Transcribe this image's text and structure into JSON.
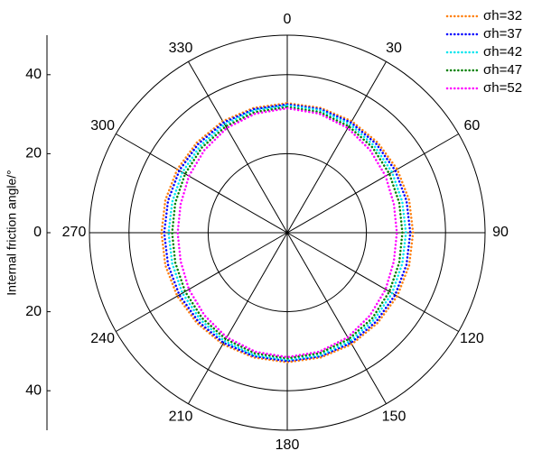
{
  "chart_data": {
    "type": "polar",
    "ylabel": "Internal friction angle/°",
    "theta": [
      0,
      15,
      30,
      45,
      60,
      75,
      90,
      105,
      120,
      135,
      150,
      165,
      180,
      195,
      210,
      225,
      240,
      255,
      270,
      285,
      300,
      315,
      330,
      345
    ],
    "thetaticks": [
      0,
      30,
      60,
      90,
      120,
      150,
      180,
      210,
      240,
      270,
      300,
      330
    ],
    "rlim": [
      0,
      50
    ],
    "rticks": [
      20,
      40
    ],
    "ylim": [
      -50,
      50
    ],
    "yticks": [
      {
        "value": 40,
        "label": "40"
      },
      {
        "value": 20,
        "label": "20"
      },
      0,
      {
        "value": -20,
        "label": "20"
      },
      {
        "value": -40,
        "label": "40"
      }
    ],
    "legend": "upper right",
    "series": [
      {
        "name": "σh=32",
        "color": "#ff7f0e",
        "values": [
          32.8,
          32.7,
          32.6,
          32.3,
          32.1,
          31.9,
          31.8,
          31.9,
          32.1,
          32.3,
          32.6,
          32.7,
          32.8,
          32.7,
          32.6,
          32.3,
          32.1,
          31.9,
          31.8,
          31.9,
          32.1,
          32.3,
          32.6,
          32.7
        ]
      },
      {
        "name": "σh=37",
        "color": "#0000ff",
        "values": [
          32.5,
          32.4,
          32.2,
          31.8,
          31.5,
          31.2,
          31.1,
          31.2,
          31.5,
          31.8,
          32.2,
          32.4,
          32.5,
          32.4,
          32.2,
          31.8,
          31.5,
          31.2,
          31.1,
          31.2,
          31.5,
          31.8,
          32.2,
          32.4
        ]
      },
      {
        "name": "σh=42",
        "color": "#00e5ee",
        "values": [
          32.2,
          32.1,
          31.7,
          31.1,
          30.6,
          30.1,
          30.0,
          30.1,
          30.6,
          31.1,
          31.7,
          32.1,
          32.2,
          32.1,
          31.7,
          31.1,
          30.6,
          30.1,
          30.0,
          30.1,
          30.6,
          31.1,
          31.7,
          32.1
        ]
      },
      {
        "name": "σh=47",
        "color": "#008000",
        "values": [
          31.8,
          31.6,
          31.1,
          30.5,
          29.8,
          29.3,
          29.1,
          29.3,
          29.8,
          30.5,
          31.1,
          31.6,
          31.8,
          31.6,
          31.1,
          30.5,
          29.8,
          29.3,
          29.1,
          29.3,
          29.8,
          30.5,
          31.1,
          31.6
        ]
      },
      {
        "name": "σh=52",
        "color": "#ff00ff",
        "values": [
          31.5,
          31.2,
          30.6,
          29.6,
          28.7,
          27.9,
          27.7,
          27.9,
          28.7,
          29.6,
          30.6,
          31.2,
          31.5,
          31.2,
          30.6,
          29.6,
          28.7,
          27.9,
          27.7,
          27.9,
          28.7,
          29.6,
          30.6,
          31.2
        ]
      }
    ]
  }
}
